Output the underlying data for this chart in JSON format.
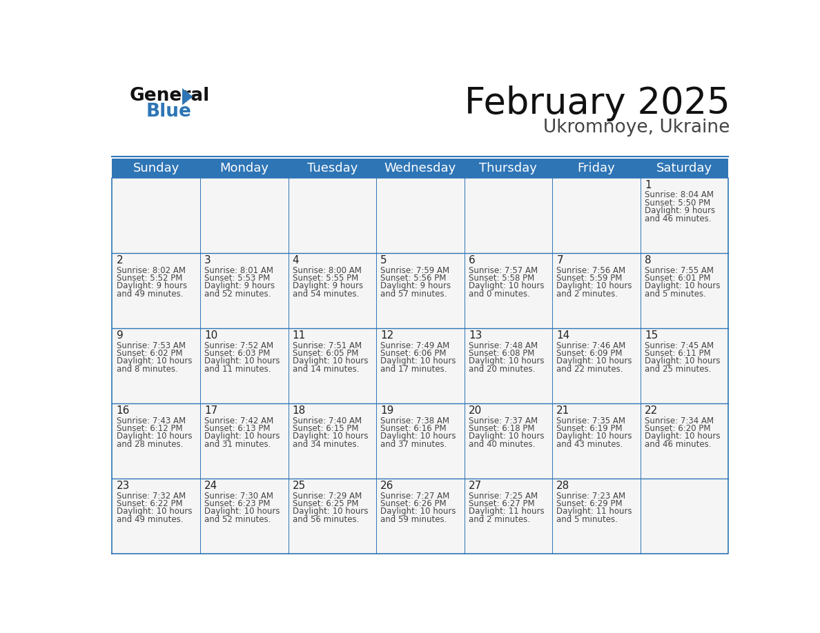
{
  "title": "February 2025",
  "subtitle": "Ukromnoye, Ukraine",
  "header_color": "#2e75b6",
  "header_text_color": "#ffffff",
  "background_color": "#ffffff",
  "cell_bg": "#f5f5f5",
  "border_color": "#2e75b6",
  "day_names": [
    "Sunday",
    "Monday",
    "Tuesday",
    "Wednesday",
    "Thursday",
    "Friday",
    "Saturday"
  ],
  "days": [
    {
      "day": 1,
      "col": 6,
      "row": 0,
      "sunrise": "8:04 AM",
      "sunset": "5:50 PM",
      "daylight_h": "9 hours",
      "daylight_m": "46 minutes."
    },
    {
      "day": 2,
      "col": 0,
      "row": 1,
      "sunrise": "8:02 AM",
      "sunset": "5:52 PM",
      "daylight_h": "9 hours",
      "daylight_m": "49 minutes."
    },
    {
      "day": 3,
      "col": 1,
      "row": 1,
      "sunrise": "8:01 AM",
      "sunset": "5:53 PM",
      "daylight_h": "9 hours",
      "daylight_m": "52 minutes."
    },
    {
      "day": 4,
      "col": 2,
      "row": 1,
      "sunrise": "8:00 AM",
      "sunset": "5:55 PM",
      "daylight_h": "9 hours",
      "daylight_m": "54 minutes."
    },
    {
      "day": 5,
      "col": 3,
      "row": 1,
      "sunrise": "7:59 AM",
      "sunset": "5:56 PM",
      "daylight_h": "9 hours",
      "daylight_m": "57 minutes."
    },
    {
      "day": 6,
      "col": 4,
      "row": 1,
      "sunrise": "7:57 AM",
      "sunset": "5:58 PM",
      "daylight_h": "10 hours",
      "daylight_m": "0 minutes."
    },
    {
      "day": 7,
      "col": 5,
      "row": 1,
      "sunrise": "7:56 AM",
      "sunset": "5:59 PM",
      "daylight_h": "10 hours",
      "daylight_m": "2 minutes."
    },
    {
      "day": 8,
      "col": 6,
      "row": 1,
      "sunrise": "7:55 AM",
      "sunset": "6:01 PM",
      "daylight_h": "10 hours",
      "daylight_m": "5 minutes."
    },
    {
      "day": 9,
      "col": 0,
      "row": 2,
      "sunrise": "7:53 AM",
      "sunset": "6:02 PM",
      "daylight_h": "10 hours",
      "daylight_m": "8 minutes."
    },
    {
      "day": 10,
      "col": 1,
      "row": 2,
      "sunrise": "7:52 AM",
      "sunset": "6:03 PM",
      "daylight_h": "10 hours",
      "daylight_m": "11 minutes."
    },
    {
      "day": 11,
      "col": 2,
      "row": 2,
      "sunrise": "7:51 AM",
      "sunset": "6:05 PM",
      "daylight_h": "10 hours",
      "daylight_m": "14 minutes."
    },
    {
      "day": 12,
      "col": 3,
      "row": 2,
      "sunrise": "7:49 AM",
      "sunset": "6:06 PM",
      "daylight_h": "10 hours",
      "daylight_m": "17 minutes."
    },
    {
      "day": 13,
      "col": 4,
      "row": 2,
      "sunrise": "7:48 AM",
      "sunset": "6:08 PM",
      "daylight_h": "10 hours",
      "daylight_m": "20 minutes."
    },
    {
      "day": 14,
      "col": 5,
      "row": 2,
      "sunrise": "7:46 AM",
      "sunset": "6:09 PM",
      "daylight_h": "10 hours",
      "daylight_m": "22 minutes."
    },
    {
      "day": 15,
      "col": 6,
      "row": 2,
      "sunrise": "7:45 AM",
      "sunset": "6:11 PM",
      "daylight_h": "10 hours",
      "daylight_m": "25 minutes."
    },
    {
      "day": 16,
      "col": 0,
      "row": 3,
      "sunrise": "7:43 AM",
      "sunset": "6:12 PM",
      "daylight_h": "10 hours",
      "daylight_m": "28 minutes."
    },
    {
      "day": 17,
      "col": 1,
      "row": 3,
      "sunrise": "7:42 AM",
      "sunset": "6:13 PM",
      "daylight_h": "10 hours",
      "daylight_m": "31 minutes."
    },
    {
      "day": 18,
      "col": 2,
      "row": 3,
      "sunrise": "7:40 AM",
      "sunset": "6:15 PM",
      "daylight_h": "10 hours",
      "daylight_m": "34 minutes."
    },
    {
      "day": 19,
      "col": 3,
      "row": 3,
      "sunrise": "7:38 AM",
      "sunset": "6:16 PM",
      "daylight_h": "10 hours",
      "daylight_m": "37 minutes."
    },
    {
      "day": 20,
      "col": 4,
      "row": 3,
      "sunrise": "7:37 AM",
      "sunset": "6:18 PM",
      "daylight_h": "10 hours",
      "daylight_m": "40 minutes."
    },
    {
      "day": 21,
      "col": 5,
      "row": 3,
      "sunrise": "7:35 AM",
      "sunset": "6:19 PM",
      "daylight_h": "10 hours",
      "daylight_m": "43 minutes."
    },
    {
      "day": 22,
      "col": 6,
      "row": 3,
      "sunrise": "7:34 AM",
      "sunset": "6:20 PM",
      "daylight_h": "10 hours",
      "daylight_m": "46 minutes."
    },
    {
      "day": 23,
      "col": 0,
      "row": 4,
      "sunrise": "7:32 AM",
      "sunset": "6:22 PM",
      "daylight_h": "10 hours",
      "daylight_m": "49 minutes."
    },
    {
      "day": 24,
      "col": 1,
      "row": 4,
      "sunrise": "7:30 AM",
      "sunset": "6:23 PM",
      "daylight_h": "10 hours",
      "daylight_m": "52 minutes."
    },
    {
      "day": 25,
      "col": 2,
      "row": 4,
      "sunrise": "7:29 AM",
      "sunset": "6:25 PM",
      "daylight_h": "10 hours",
      "daylight_m": "56 minutes."
    },
    {
      "day": 26,
      "col": 3,
      "row": 4,
      "sunrise": "7:27 AM",
      "sunset": "6:26 PM",
      "daylight_h": "10 hours",
      "daylight_m": "59 minutes."
    },
    {
      "day": 27,
      "col": 4,
      "row": 4,
      "sunrise": "7:25 AM",
      "sunset": "6:27 PM",
      "daylight_h": "11 hours",
      "daylight_m": "2 minutes."
    },
    {
      "day": 28,
      "col": 5,
      "row": 4,
      "sunrise": "7:23 AM",
      "sunset": "6:29 PM",
      "daylight_h": "11 hours",
      "daylight_m": "5 minutes."
    }
  ],
  "num_rows": 5,
  "num_cols": 7,
  "title_fontsize": 38,
  "subtitle_fontsize": 19,
  "header_fontsize": 13,
  "day_num_fontsize": 11,
  "cell_text_fontsize": 8.5
}
